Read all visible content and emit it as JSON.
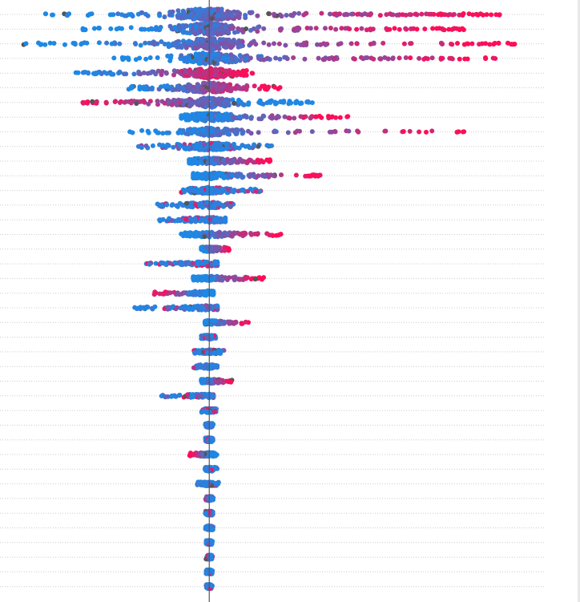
{
  "chart_data": {
    "type": "scatter",
    "subtype": "beeswarm",
    "title": "",
    "xlabel": "",
    "ylabel": "",
    "grid": true,
    "baseline_x": 0,
    "xlim": [
      -2.62,
      4.2
    ],
    "colors": {
      "low": "#1E88E5",
      "high": "#FF0D57",
      "missing": "#555555",
      "baseline": "#555555",
      "grid": "#cccccc"
    },
    "rows": [
      {
        "min": -2.05,
        "max": 3.7,
        "density": 1.0,
        "high_side": "positive"
      },
      {
        "min": -1.6,
        "max": 3.2,
        "density": 0.9,
        "high_side": "positive"
      },
      {
        "min": -2.35,
        "max": 3.9,
        "density": 0.9,
        "high_side": "positive"
      },
      {
        "min": -1.2,
        "max": 3.7,
        "density": 0.85,
        "high_side": "positive"
      },
      {
        "min": -1.75,
        "max": 0.6,
        "density": 0.7,
        "high_side": "positive"
      },
      {
        "min": -1.05,
        "max": 0.9,
        "density": 0.7,
        "high_side": "positive"
      },
      {
        "min": -1.6,
        "max": 1.3,
        "density": 0.7,
        "high_side": "negative"
      },
      {
        "min": -0.35,
        "max": 1.75,
        "density": 0.55,
        "high_side": "positive"
      },
      {
        "min": -1.0,
        "max": 3.2,
        "density": 0.5,
        "high_side": "positive"
      },
      {
        "min": -0.9,
        "max": 0.85,
        "density": 0.5,
        "high_side": "mixed"
      },
      {
        "min": -0.25,
        "max": 0.8,
        "density": 0.4,
        "high_side": "positive"
      },
      {
        "min": -0.2,
        "max": 1.45,
        "density": 0.4,
        "high_side": "positive"
      },
      {
        "min": -0.35,
        "max": 0.65,
        "density": 0.4,
        "high_side": "mixed"
      },
      {
        "min": -0.65,
        "max": 0.3,
        "density": 0.35,
        "high_side": "mixed"
      },
      {
        "min": -0.65,
        "max": 0.2,
        "density": 0.3,
        "high_side": "mixed"
      },
      {
        "min": -0.35,
        "max": 0.9,
        "density": 0.3,
        "high_side": "positive"
      },
      {
        "min": -0.1,
        "max": 0.25,
        "density": 0.25,
        "high_side": "positive"
      },
      {
        "min": -0.8,
        "max": 0.1,
        "density": 0.25,
        "high_side": "mixed"
      },
      {
        "min": -0.2,
        "max": 0.7,
        "density": 0.25,
        "high_side": "positive"
      },
      {
        "min": -0.7,
        "max": 0.05,
        "density": 0.25,
        "high_side": "negative"
      },
      {
        "min": -0.95,
        "max": 0.1,
        "density": 0.25,
        "high_side": "mixed"
      },
      {
        "min": -0.05,
        "max": 0.5,
        "density": 0.2,
        "high_side": "positive"
      },
      {
        "min": -0.1,
        "max": 0.1,
        "density": 0.2,
        "high_side": "mixed"
      },
      {
        "min": -0.2,
        "max": 0.2,
        "density": 0.2,
        "high_side": "mixed"
      },
      {
        "min": -0.2,
        "max": 0.1,
        "density": 0.2,
        "high_side": "mixed"
      },
      {
        "min": -0.1,
        "max": 0.3,
        "density": 0.2,
        "high_side": "positive"
      },
      {
        "min": -0.6,
        "max": 0.05,
        "density": 0.2,
        "high_side": "mixed"
      },
      {
        "min": -0.1,
        "max": 0.1,
        "density": 0.2,
        "high_side": "mixed"
      },
      {
        "min": -0.05,
        "max": 0.05,
        "density": 0.2,
        "high_side": "mixed"
      },
      {
        "min": -0.05,
        "max": 0.05,
        "density": 0.2,
        "high_side": "mixed"
      },
      {
        "min": -0.25,
        "max": 0.1,
        "density": 0.2,
        "high_side": "negative"
      },
      {
        "min": -0.05,
        "max": 0.1,
        "density": 0.2,
        "high_side": "mixed"
      },
      {
        "min": -0.15,
        "max": 0.12,
        "density": 0.2,
        "high_side": "mixed"
      },
      {
        "min": -0.05,
        "max": 0.05,
        "density": 0.2,
        "high_side": "mixed"
      },
      {
        "min": -0.05,
        "max": 0.05,
        "density": 0.2,
        "high_side": "mixed"
      },
      {
        "min": -0.05,
        "max": 0.05,
        "density": 0.2,
        "high_side": "mixed"
      },
      {
        "min": -0.04,
        "max": 0.04,
        "density": 0.2,
        "high_side": "mixed"
      },
      {
        "min": -0.04,
        "max": 0.04,
        "density": 0.2,
        "high_side": "mixed"
      },
      {
        "min": -0.04,
        "max": 0.04,
        "density": 0.2,
        "high_side": "mixed"
      },
      {
        "min": -0.04,
        "max": 0.04,
        "density": 0.2,
        "high_side": "mixed"
      }
    ]
  }
}
